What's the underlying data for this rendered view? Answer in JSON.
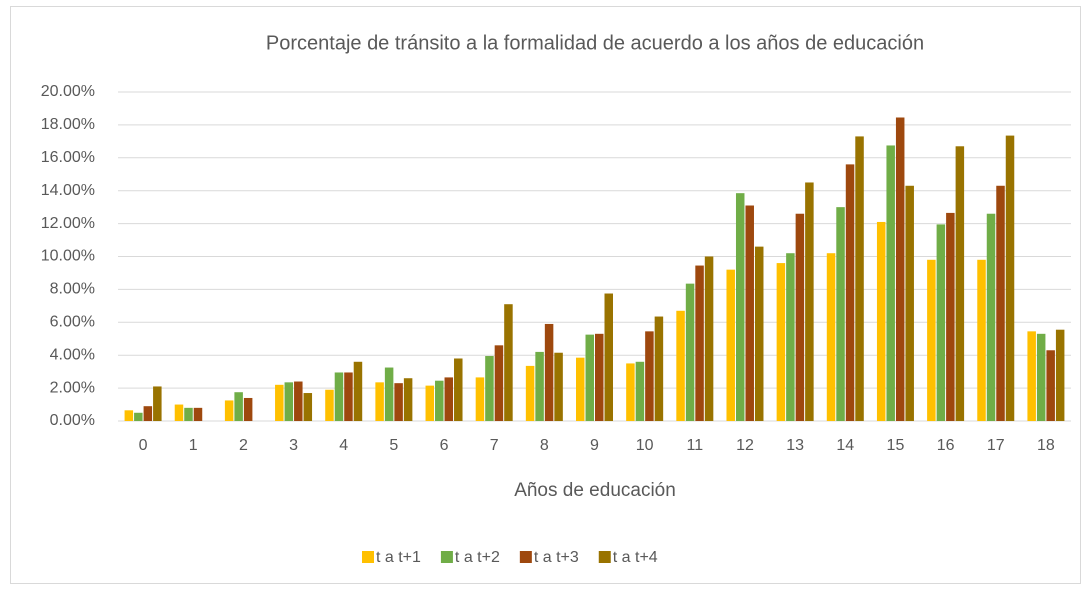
{
  "chart_data": {
    "type": "bar",
    "title": "Porcentaje de tránsito a la formalidad de acuerdo a los años de educación",
    "x_label": "Años de educación",
    "categories": [
      "0",
      "1",
      "2",
      "3",
      "4",
      "5",
      "6",
      "7",
      "8",
      "9",
      "10",
      "11",
      "12",
      "13",
      "14",
      "15",
      "16",
      "17",
      "18"
    ],
    "series": [
      {
        "name": "t a t+1",
        "color": "#FFC000",
        "values": [
          0.65,
          1.0,
          1.25,
          2.2,
          1.9,
          2.35,
          2.15,
          2.65,
          3.35,
          3.85,
          3.5,
          6.7,
          9.2,
          9.6,
          10.2,
          12.1,
          9.8,
          9.8,
          5.45
        ]
      },
      {
        "name": "t a t+2",
        "color": "#70AD47",
        "values": [
          0.5,
          0.8,
          1.75,
          2.35,
          2.95,
          3.25,
          2.45,
          3.95,
          4.2,
          5.25,
          3.6,
          8.35,
          13.85,
          10.2,
          13.0,
          16.75,
          11.95,
          12.6,
          5.3
        ]
      },
      {
        "name": "t a t+3",
        "color": "#9E480E",
        "values": [
          0.9,
          0.8,
          1.4,
          2.4,
          2.95,
          2.3,
          2.65,
          4.6,
          5.9,
          5.3,
          5.45,
          9.45,
          13.1,
          12.6,
          15.6,
          18.45,
          12.65,
          14.3,
          4.3
        ]
      },
      {
        "name": "t a t+4",
        "color": "#997300",
        "values": [
          2.1,
          null,
          null,
          1.7,
          3.6,
          2.6,
          3.8,
          7.1,
          4.15,
          7.75,
          6.35,
          10.0,
          10.6,
          14.5,
          17.3,
          14.3,
          16.7,
          17.35,
          5.55
        ]
      }
    ],
    "ylim": [
      0,
      20
    ],
    "yticks": [
      {
        "value": 0,
        "label": "0.00%"
      },
      {
        "value": 2,
        "label": "2.00%"
      },
      {
        "value": 4,
        "label": "4.00%"
      },
      {
        "value": 6,
        "label": "6.00%"
      },
      {
        "value": 8,
        "label": "8.00%"
      },
      {
        "value": 10,
        "label": "10.00%"
      },
      {
        "value": 12,
        "label": "12.00%"
      },
      {
        "value": 14,
        "label": "14.00%"
      },
      {
        "value": 16,
        "label": "16.00%"
      },
      {
        "value": 18,
        "label": "18.00%"
      },
      {
        "value": 20,
        "label": "20.00%"
      }
    ],
    "grid": true,
    "legend": "bottom"
  }
}
